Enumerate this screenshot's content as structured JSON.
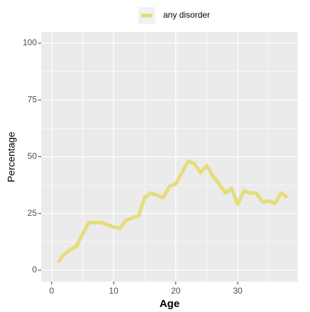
{
  "chart_data": {
    "type": "line",
    "x_label": "Age",
    "y_label": "Percentage",
    "x": [
      1,
      2,
      3,
      4,
      5,
      6,
      7,
      8,
      9,
      10,
      11,
      12,
      13,
      14,
      15,
      16,
      17,
      18,
      19,
      20,
      21,
      22,
      23,
      24,
      25,
      26,
      27,
      28,
      29,
      30,
      31,
      32,
      33,
      34,
      35,
      36,
      37,
      38
    ],
    "series": [
      {
        "name": "any disorder",
        "color": "#e3db6e",
        "values": [
          3.4,
          7,
          9,
          10.6,
          16,
          21,
          21,
          21,
          20,
          19,
          18.5,
          22,
          23,
          24,
          32,
          34,
          33,
          32,
          37,
          38,
          43,
          48,
          47,
          43,
          46,
          41.5,
          38,
          34,
          36,
          29,
          35,
          34,
          34,
          30,
          30.5,
          29.5,
          34,
          32
        ]
      }
    ],
    "xlim": [
      -1.7,
      39.7
    ],
    "xticks": [
      0,
      10,
      20,
      30
    ],
    "xminor": [
      5,
      15,
      25,
      35
    ],
    "ylim": [
      -5,
      105
    ],
    "yticks": [
      0,
      25,
      50,
      75,
      100
    ],
    "yminor": [
      12.5,
      37.5,
      62.5,
      87.5
    ],
    "grid": true,
    "legend": "top"
  }
}
